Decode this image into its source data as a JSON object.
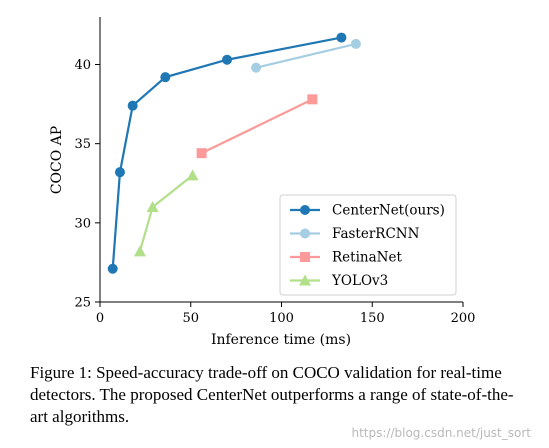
{
  "chart_data": {
    "type": "line",
    "title": "",
    "xlabel": "Inference time (ms)",
    "ylabel": "COCO AP",
    "xlim": [
      0,
      200
    ],
    "ylim": [
      25,
      43
    ],
    "xticks": [
      0,
      50,
      100,
      150,
      200
    ],
    "yticks": [
      25,
      30,
      35,
      40
    ],
    "grid": false,
    "legend_position": "lower-right",
    "series": [
      {
        "name": "CenterNet(ours)",
        "marker": "circle",
        "color": "#1f77b4",
        "x": [
          7,
          11,
          18,
          36,
          70,
          133
        ],
        "y": [
          27.1,
          33.2,
          37.4,
          39.2,
          40.3,
          41.7
        ]
      },
      {
        "name": "FasterRCNN",
        "marker": "circle",
        "color": "#a6cee3",
        "x": [
          86,
          141
        ],
        "y": [
          39.8,
          41.3
        ]
      },
      {
        "name": "RetinaNet",
        "marker": "square",
        "color": "#fb9a99",
        "x": [
          56,
          117
        ],
        "y": [
          34.4,
          37.8
        ]
      },
      {
        "name": "YOLOv3",
        "marker": "triangle",
        "color": "#b2df8a",
        "x": [
          22,
          29,
          51
        ],
        "y": [
          28.2,
          31.0,
          33.0
        ]
      }
    ]
  },
  "caption": "Figure 1: Speed-accuracy trade-off on COCO validation for real-time detectors. The proposed CenterNet outperforms a range of state-of-the-art algorithms.",
  "watermark": "https://blog.csdn.net/just_sort"
}
